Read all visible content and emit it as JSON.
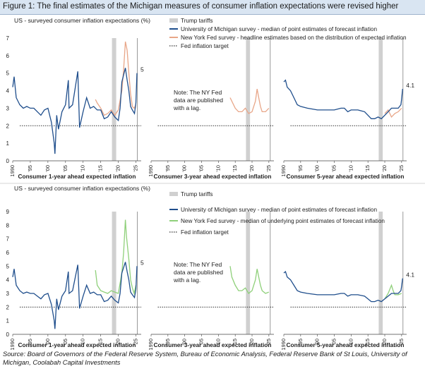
{
  "figure_title": "Figure 1: The final estimates of the Michigan measures of consumer inflation expectations were revised higher",
  "source": "Source: Board of Governors of the Federal Reserve System,  Bureau of Economic Analysis, Federal Reserve Bank of St Louis, University of Michigan, Coolabah Capital Investments",
  "colors": {
    "michigan": "#1f4e8c",
    "nyfed_headline": "#e8a688",
    "nyfed_underlying": "#8fd07a",
    "tariff": "#d0d0d0",
    "target": "#333333"
  },
  "chart_data": [
    {
      "type": "line",
      "ylabel": "US - surveyed consumer inflation expectations (%)",
      "ylim": [
        0,
        7
      ],
      "yticks": [
        0,
        1,
        2,
        3,
        4,
        5,
        6,
        7
      ],
      "xticks": [
        "1990",
        "'95",
        "'00",
        "'05",
        "'10",
        "'15",
        "'20",
        "'25"
      ],
      "legend": {
        "tariffs": "Trump tariffs",
        "michigan": "University of Michigan survey - median of point estimates of forecast inflation",
        "nyfed": "New York Fed survey - headline estimates based on the distribution of expected inflation",
        "target": "Fed inflation target"
      },
      "note": [
        "Note: The NY Fed",
        "data are published",
        "with a lag."
      ],
      "fed_target": 2,
      "tariff_period": [
        2018.2,
        2019.4
      ],
      "panels": [
        {
          "xlabel": "Consumer 1-year ahead expected inflation",
          "end_label": "5",
          "michigan": [
            [
              1990,
              4.2
            ],
            [
              1990.4,
              4.8
            ],
            [
              1991,
              3.6
            ],
            [
              1992,
              3.2
            ],
            [
              1993,
              3.0
            ],
            [
              1994,
              3.1
            ],
            [
              1995,
              3.0
            ],
            [
              1996,
              3.0
            ],
            [
              1997,
              2.8
            ],
            [
              1998,
              2.6
            ],
            [
              1999,
              2.9
            ],
            [
              2000,
              3.0
            ],
            [
              2001,
              2.2
            ],
            [
              2001.8,
              1.0
            ],
            [
              2002,
              0.4
            ],
            [
              2002.5,
              2.6
            ],
            [
              2003,
              1.8
            ],
            [
              2004,
              2.8
            ],
            [
              2005,
              3.2
            ],
            [
              2005.8,
              4.6
            ],
            [
              2006,
              3.0
            ],
            [
              2007,
              3.2
            ],
            [
              2008.5,
              5.1
            ],
            [
              2009,
              1.9
            ],
            [
              2010,
              2.8
            ],
            [
              2011,
              3.6
            ],
            [
              2012,
              3.0
            ],
            [
              2013,
              3.1
            ],
            [
              2014,
              2.9
            ],
            [
              2015,
              2.9
            ],
            [
              2016,
              2.4
            ],
            [
              2017,
              2.5
            ],
            [
              2018,
              2.8
            ],
            [
              2019,
              2.5
            ],
            [
              2020,
              2.3
            ],
            [
              2020.5,
              3.0
            ],
            [
              2021,
              4.5
            ],
            [
              2022,
              5.3
            ],
            [
              2022.5,
              4.6
            ],
            [
              2023,
              4.0
            ],
            [
              2023.5,
              3.1
            ],
            [
              2024,
              2.9
            ],
            [
              2024.6,
              2.7
            ],
            [
              2025,
              3.3
            ],
            [
              2025.3,
              5.0
            ]
          ],
          "nyfed": [
            [
              2013.5,
              3.5
            ],
            [
              2014,
              3.3
            ],
            [
              2015,
              3.0
            ],
            [
              2016,
              2.6
            ],
            [
              2017,
              2.7
            ],
            [
              2018,
              2.9
            ],
            [
              2019,
              2.6
            ],
            [
              2020,
              2.9
            ],
            [
              2021,
              4.0
            ],
            [
              2021.5,
              5.2
            ],
            [
              2022,
              6.8
            ],
            [
              2022.5,
              6.3
            ],
            [
              2023,
              5.0
            ],
            [
              2023.5,
              3.8
            ],
            [
              2024,
              3.1
            ],
            [
              2024.5,
              3.0
            ],
            [
              2025,
              3.2
            ]
          ]
        },
        {
          "xlabel": "Consumer 3-year ahead expected inflation",
          "end_label": "",
          "michigan": [],
          "nyfed": [
            [
              2013.5,
              3.6
            ],
            [
              2014,
              3.4
            ],
            [
              2015,
              3.0
            ],
            [
              2016,
              2.8
            ],
            [
              2017,
              2.8
            ],
            [
              2018,
              3.0
            ],
            [
              2019,
              2.7
            ],
            [
              2020,
              2.8
            ],
            [
              2021,
              3.4
            ],
            [
              2021.5,
              4.1
            ],
            [
              2022,
              3.6
            ],
            [
              2022.5,
              3.1
            ],
            [
              2023,
              2.8
            ],
            [
              2024,
              2.8
            ],
            [
              2025,
              3.0
            ]
          ]
        },
        {
          "xlabel": "Consumer 5-year ahead expected inflation",
          "end_label": "4.1",
          "michigan": [
            [
              1990,
              4.5
            ],
            [
              1990.5,
              4.6
            ],
            [
              1991,
              4.2
            ],
            [
              1992,
              4.0
            ],
            [
              1993,
              3.6
            ],
            [
              1994,
              3.2
            ],
            [
              1995,
              3.1
            ],
            [
              1997,
              3.0
            ],
            [
              2000,
              2.9
            ],
            [
              2002,
              2.9
            ],
            [
              2005,
              2.9
            ],
            [
              2007,
              3.0
            ],
            [
              2008,
              3.0
            ],
            [
              2009,
              2.8
            ],
            [
              2010,
              2.9
            ],
            [
              2012,
              2.9
            ],
            [
              2014,
              2.8
            ],
            [
              2015,
              2.6
            ],
            [
              2016,
              2.4
            ],
            [
              2017,
              2.4
            ],
            [
              2018,
              2.5
            ],
            [
              2019,
              2.4
            ],
            [
              2020,
              2.6
            ],
            [
              2021,
              2.8
            ],
            [
              2022,
              3.0
            ],
            [
              2023,
              3.0
            ],
            [
              2024,
              3.0
            ],
            [
              2024.8,
              3.2
            ],
            [
              2025,
              3.5
            ],
            [
              2025.3,
              4.1
            ]
          ],
          "nyfed": [
            [
              2020,
              2.7
            ],
            [
              2021,
              2.9
            ],
            [
              2022,
              2.5
            ],
            [
              2023,
              2.7
            ],
            [
              2024,
              2.8
            ],
            [
              2025,
              3.0
            ]
          ]
        }
      ]
    },
    {
      "type": "line",
      "ylabel": "US - surveyed consumer inflation expectations (%)",
      "ylim": [
        0,
        9
      ],
      "yticks": [
        0,
        1,
        2,
        3,
        4,
        5,
        6,
        7,
        8,
        9
      ],
      "xticks": [
        "1990",
        "'95",
        "'00",
        "'05",
        "'10",
        "'15",
        "'20",
        "'25"
      ],
      "legend": {
        "tariffs": "Trump tariffs",
        "michigan": "University of Michigan survey - median of point estimates of forecast inflation",
        "nyfed": "New York Fed survey - median of underlying point estimates of forecast inflation",
        "target": "Fed inflation target"
      },
      "note": [
        "Note: The NY Fed",
        "data are published",
        "with a lag."
      ],
      "fed_target": 2,
      "tariff_period": [
        2018.2,
        2019.4
      ],
      "panels": [
        {
          "xlabel": "Consumer 1-year ahead expected inflation",
          "end_label": "5",
          "michigan": [
            [
              1990,
              4.2
            ],
            [
              1990.4,
              4.8
            ],
            [
              1991,
              3.6
            ],
            [
              1992,
              3.2
            ],
            [
              1993,
              3.0
            ],
            [
              1994,
              3.1
            ],
            [
              1995,
              3.0
            ],
            [
              1996,
              3.0
            ],
            [
              1997,
              2.8
            ],
            [
              1998,
              2.6
            ],
            [
              1999,
              2.9
            ],
            [
              2000,
              3.0
            ],
            [
              2001,
              2.2
            ],
            [
              2001.8,
              1.0
            ],
            [
              2002,
              0.4
            ],
            [
              2002.5,
              2.6
            ],
            [
              2003,
              1.8
            ],
            [
              2004,
              2.8
            ],
            [
              2005,
              3.2
            ],
            [
              2005.8,
              4.6
            ],
            [
              2006,
              3.0
            ],
            [
              2007,
              3.2
            ],
            [
              2008.5,
              5.1
            ],
            [
              2009,
              1.9
            ],
            [
              2010,
              2.8
            ],
            [
              2011,
              3.6
            ],
            [
              2012,
              3.0
            ],
            [
              2013,
              3.1
            ],
            [
              2014,
              2.9
            ],
            [
              2015,
              2.9
            ],
            [
              2016,
              2.4
            ],
            [
              2017,
              2.5
            ],
            [
              2018,
              2.8
            ],
            [
              2019,
              2.5
            ],
            [
              2020,
              2.3
            ],
            [
              2020.5,
              3.0
            ],
            [
              2021,
              4.5
            ],
            [
              2022,
              5.3
            ],
            [
              2022.5,
              4.6
            ],
            [
              2023,
              4.0
            ],
            [
              2023.5,
              3.1
            ],
            [
              2024,
              2.9
            ],
            [
              2024.6,
              2.7
            ],
            [
              2025,
              3.3
            ],
            [
              2025.3,
              5.0
            ]
          ],
          "nyfed": [
            [
              2013.5,
              4.7
            ],
            [
              2014,
              3.6
            ],
            [
              2015,
              3.2
            ],
            [
              2016,
              3.1
            ],
            [
              2017,
              3.0
            ],
            [
              2018,
              3.2
            ],
            [
              2019,
              3.1
            ],
            [
              2020,
              3.0
            ],
            [
              2021,
              4.5
            ],
            [
              2021.5,
              6.0
            ],
            [
              2022,
              8.4
            ],
            [
              2022.3,
              7.2
            ],
            [
              2023,
              5.5
            ],
            [
              2023.5,
              4.0
            ],
            [
              2024,
              3.4
            ],
            [
              2024.5,
              3.0
            ],
            [
              2025,
              3.6
            ]
          ]
        },
        {
          "xlabel": "Consumer 3-year ahead expected inflation",
          "end_label": "",
          "michigan": [],
          "nyfed": [
            [
              2013.5,
              5.0
            ],
            [
              2014,
              4.2
            ],
            [
              2015,
              3.6
            ],
            [
              2016,
              3.2
            ],
            [
              2017,
              3.2
            ],
            [
              2018,
              3.4
            ],
            [
              2019,
              3.0
            ],
            [
              2020,
              3.2
            ],
            [
              2021,
              4.0
            ],
            [
              2021.5,
              4.8
            ],
            [
              2022,
              4.2
            ],
            [
              2022.5,
              3.6
            ],
            [
              2023,
              3.2
            ],
            [
              2024,
              3.0
            ],
            [
              2025,
              3.1
            ]
          ]
        },
        {
          "xlabel": "Consumer 5-year ahead expected inflation",
          "end_label": "4.1",
          "michigan": [
            [
              1990,
              4.5
            ],
            [
              1990.5,
              4.6
            ],
            [
              1991,
              4.2
            ],
            [
              1992,
              4.0
            ],
            [
              1993,
              3.6
            ],
            [
              1994,
              3.2
            ],
            [
              1995,
              3.1
            ],
            [
              1997,
              3.0
            ],
            [
              2000,
              2.9
            ],
            [
              2002,
              2.9
            ],
            [
              2005,
              2.9
            ],
            [
              2007,
              3.0
            ],
            [
              2008,
              3.0
            ],
            [
              2009,
              2.8
            ],
            [
              2010,
              2.9
            ],
            [
              2012,
              2.9
            ],
            [
              2014,
              2.8
            ],
            [
              2015,
              2.6
            ],
            [
              2016,
              2.4
            ],
            [
              2017,
              2.4
            ],
            [
              2018,
              2.5
            ],
            [
              2019,
              2.4
            ],
            [
              2020,
              2.6
            ],
            [
              2021,
              2.8
            ],
            [
              2022,
              3.0
            ],
            [
              2023,
              3.0
            ],
            [
              2024,
              3.0
            ],
            [
              2024.8,
              3.2
            ],
            [
              2025,
              3.5
            ],
            [
              2025.3,
              4.1
            ]
          ],
          "nyfed": [
            [
              2020,
              2.6
            ],
            [
              2021,
              3.0
            ],
            [
              2022,
              3.6
            ],
            [
              2022.5,
              3.2
            ],
            [
              2023,
              2.9
            ],
            [
              2024,
              2.9
            ],
            [
              2025,
              3.0
            ]
          ]
        }
      ]
    }
  ]
}
